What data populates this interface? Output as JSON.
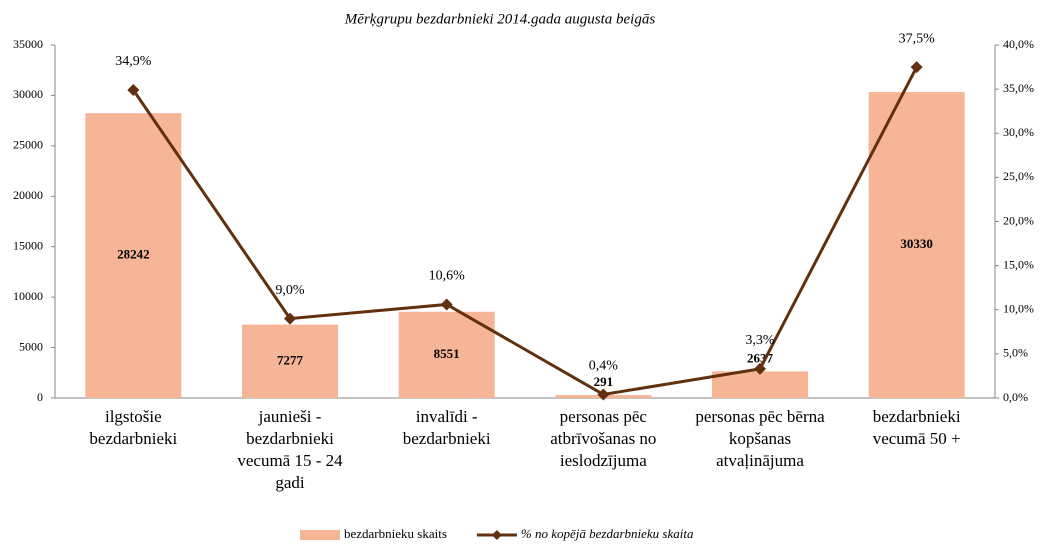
{
  "chart_data": {
    "type": "bar_line",
    "title": "Mērķgrupu bezdarbnieki 2014.gada  augusta  beigās",
    "categories": [
      "ilgstošie\nbezdarbnieki",
      "jaunieši -\nbezdarbnieki\nvecumā 15 - 24\ngadi",
      "invalīdi -\nbezdarbnieki",
      "personas pēc\natbrīvošanas no\nieslodzījuma",
      "personas pēc bērna\nkopšanas\natvaļinājuma",
      "bezdarbnieki\nvecumā 50 +"
    ],
    "series": [
      {
        "name": "bezdarbnieku skaits",
        "type": "bar",
        "color": "#f6b596",
        "values": [
          28242,
          7277,
          8551,
          291,
          2637,
          30330
        ]
      },
      {
        "name": "% no kopējā bezdarbnieku skaita",
        "type": "line",
        "axis": "y2",
        "color": "#62300f",
        "values": [
          34.9,
          9.0,
          10.6,
          0.4,
          3.3,
          37.5
        ],
        "value_labels": [
          "34,9%",
          "9,0%",
          "10,6%",
          "0,4%",
          "3,3%",
          "37,5%"
        ]
      }
    ],
    "ylim": [
      0,
      35000
    ],
    "yticks": [
      0,
      5000,
      10000,
      15000,
      20000,
      25000,
      30000,
      35000
    ],
    "y2lim": [
      0,
      40
    ],
    "y2ticks": [
      {
        "value": 0,
        "label": "0,0%"
      },
      {
        "value": 5,
        "label": "5,0%"
      },
      {
        "value": 10,
        "label": "10,0%"
      },
      {
        "value": 15,
        "label": "15,0%"
      },
      {
        "value": 20,
        "label": "20,0%"
      },
      {
        "value": 25,
        "label": "25,0%"
      },
      {
        "value": 30,
        "label": "30,0%"
      },
      {
        "value": 35,
        "label": "35,0%"
      },
      {
        "value": 40,
        "label": "40,0%"
      }
    ],
    "legend": "bottom"
  }
}
